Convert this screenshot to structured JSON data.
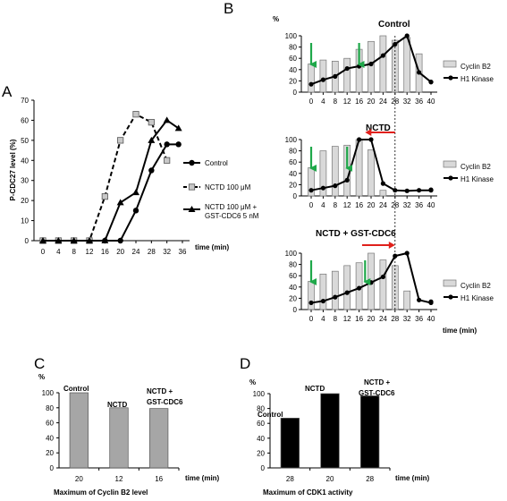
{
  "figure": {
    "panel_labels": [
      "A",
      "B",
      "C",
      "D"
    ]
  },
  "chart_data": [
    {
      "id": "A",
      "type": "line",
      "ylabel": "P-CDC27 level (%)",
      "xlabel": "time (min)",
      "x": [
        0,
        4,
        8,
        12,
        16,
        20,
        24,
        28,
        32,
        36
      ],
      "ylim": [
        0,
        70
      ],
      "yticks": [
        0,
        10,
        20,
        30,
        40,
        50,
        60,
        70
      ],
      "series": [
        {
          "name": "Control",
          "style": "solid-circle",
          "points": [
            [
              0,
              0
            ],
            [
              4,
              0
            ],
            [
              8,
              0
            ],
            [
              12,
              0
            ],
            [
              16,
              0
            ],
            [
              20,
              0
            ],
            [
              24,
              15
            ],
            [
              28,
              35
            ],
            [
              32,
              48
            ],
            [
              35,
              48
            ]
          ]
        },
        {
          "name": "NCTD 100 μM",
          "style": "dashed-square",
          "points": [
            [
              0,
              0
            ],
            [
              4,
              0
            ],
            [
              8,
              0
            ],
            [
              12,
              0
            ],
            [
              16,
              22
            ],
            [
              20,
              50
            ],
            [
              24,
              63
            ],
            [
              28,
              59
            ],
            [
              32,
              40
            ]
          ]
        },
        {
          "name": "NCTD 100 μM + GST-CDC6 5 nM",
          "name_lines": [
            "NCTD 100 μM +",
            "GST-CDC6 5 nM"
          ],
          "style": "solid-triangle",
          "points": [
            [
              0,
              0
            ],
            [
              4,
              0
            ],
            [
              8,
              0
            ],
            [
              12,
              0
            ],
            [
              16,
              0
            ],
            [
              20,
              19
            ],
            [
              24,
              24
            ],
            [
              28,
              50
            ],
            [
              32,
              60
            ],
            [
              35,
              56
            ]
          ]
        }
      ]
    },
    {
      "id": "B",
      "type": "bar+line",
      "ylabel": "%",
      "xlabel": "time (min)",
      "x": [
        0,
        4,
        8,
        12,
        16,
        20,
        24,
        28,
        32,
        36,
        40
      ],
      "ylim": [
        0,
        100
      ],
      "yticks": [
        0,
        20,
        40,
        60,
        80,
        100
      ],
      "legend": [
        "Cyclin B2",
        "H1 Kinase"
      ],
      "dashed_reference_x": 28,
      "subplots": [
        {
          "title": "Control",
          "arrow_down": [
            0,
            16
          ],
          "arrow_left": null,
          "bars": [
            50,
            57,
            55,
            60,
            76,
            90,
            100,
            92,
            97,
            68
          ],
          "line": [
            14,
            22,
            28,
            42,
            46,
            50,
            65,
            85,
            100,
            35,
            18,
            18
          ]
        },
        {
          "title": "NCTD",
          "arrow_down": [
            0,
            12
          ],
          "arrow_left": [
            28,
            18
          ],
          "bars": [
            50,
            80,
            88,
            90,
            100,
            82,
            10
          ],
          "line": [
            10,
            14,
            18,
            28,
            100,
            100,
            22,
            10,
            9,
            10,
            10,
            11
          ]
        },
        {
          "title": "NCTD + GST-CDC6",
          "arrow_down": [
            0,
            18
          ],
          "arrow_right": [
            17,
            28
          ],
          "bars": [
            50,
            63,
            68,
            78,
            83,
            100,
            88,
            78,
            33
          ],
          "line": [
            12,
            15,
            22,
            30,
            38,
            48,
            58,
            95,
            100,
            17,
            12,
            14
          ]
        }
      ]
    },
    {
      "id": "C",
      "type": "bar",
      "ylabel": "%",
      "xlabel": "time (min)",
      "title": "Maximum of Cyclin B2 level",
      "categories": [
        "20",
        "12",
        "16"
      ],
      "values": [
        100,
        80,
        79
      ],
      "labels": [
        "Control",
        "NCTD",
        "NCTD + GST-CDC6"
      ],
      "ylim": [
        0,
        100
      ],
      "yticks": [
        0,
        20,
        40,
        60,
        80,
        100
      ]
    },
    {
      "id": "D",
      "type": "bar",
      "ylabel": "%",
      "xlabel": "time (min)",
      "title": "Maximum of CDK1 activity",
      "categories": [
        "28",
        "20",
        "28"
      ],
      "values": [
        67,
        100,
        97
      ],
      "labels": [
        "Control",
        "NCTD",
        "NCTD + GST-CDC6"
      ],
      "ylim": [
        0,
        100
      ],
      "yticks": [
        0,
        20,
        40,
        60,
        80,
        100
      ]
    }
  ]
}
